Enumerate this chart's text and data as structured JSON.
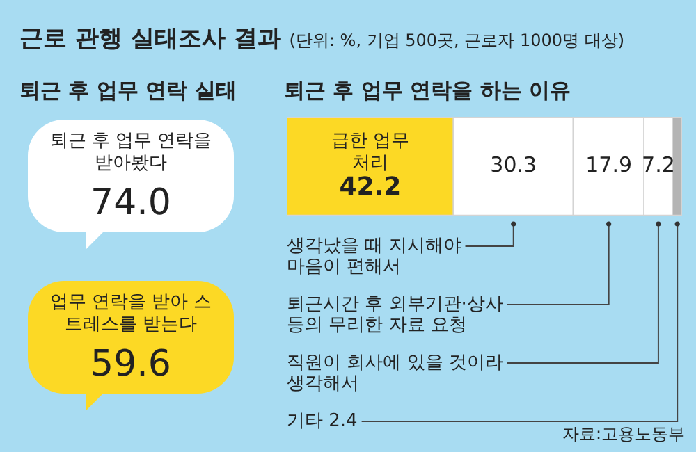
{
  "chart_data": [
    {
      "type": "other",
      "title": "근로 관행 실태조사 결과",
      "subtitle": "(단위: %, 기업 500곳, 근로자 1000명 대상)"
    },
    {
      "type": "other",
      "title": "퇴근 후 업무 연락 실태",
      "categories": [
        "퇴근 후 업무 연락을 받아봤다",
        "업무 연락을 받아 스트레스를 받는다"
      ],
      "values": [
        74.0,
        59.6
      ],
      "value_labels": [
        "74.0",
        "59.6"
      ],
      "colors": [
        "#ffffff",
        "#fcd925"
      ]
    },
    {
      "type": "bar",
      "orientation": "horizontal",
      "stacked": true,
      "title": "퇴근 후 업무 연락을 하는 이유",
      "categories": [
        null
      ],
      "xlim": [
        0,
        100
      ],
      "tick_labels": false,
      "annotations": [
        "자료:고용노동부"
      ],
      "series": [
        {
          "name": "급한 업무 처리",
          "color": "#fcd925",
          "values": [
            42.2
          ],
          "value_labels": [
            "42.2"
          ]
        },
        {
          "name": "생각났을 때 지시해야 마음이 편해서",
          "color": "#ffffff",
          "values": [
            30.3
          ],
          "value_labels": [
            "30.3"
          ]
        },
        {
          "name": "퇴근시간 후 외부기관·상사 등의 무리한 자료 요청",
          "color": "#ffffff",
          "values": [
            17.9
          ],
          "value_labels": [
            "17.9"
          ]
        },
        {
          "name": "직원이 회사에 있을 것이라 생각해서",
          "color": "#ffffff",
          "values": [
            7.2
          ],
          "value_labels": [
            "7.2"
          ]
        },
        {
          "name": "기타 2.4",
          "color": "#b4b4b4",
          "values": [
            2.4
          ],
          "value_labels": [
            null
          ]
        }
      ]
    }
  ]
}
